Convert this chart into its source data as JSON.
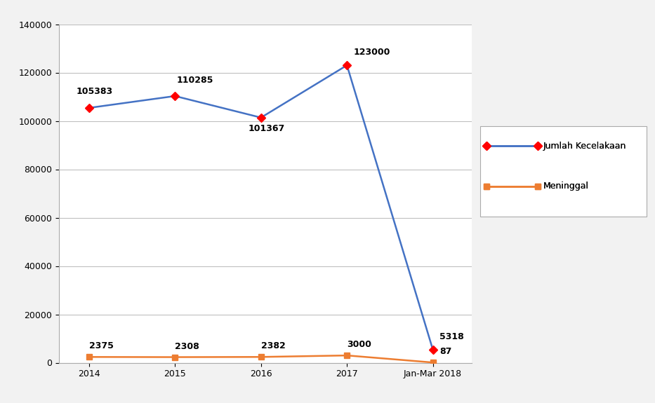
{
  "x_labels": [
    "2014",
    "2015",
    "2016",
    "2017",
    "Jan-Mar 2018"
  ],
  "x_positions": [
    0,
    1,
    2,
    3,
    4
  ],
  "jumlah_kecelakaan": [
    105383,
    110285,
    101367,
    123000,
    5318
  ],
  "meninggal": [
    2375,
    2308,
    2382,
    3000,
    87
  ],
  "jumlah_kecelakaan_labels": [
    "105383",
    "110285",
    "101367",
    "123000",
    "5318"
  ],
  "meninggal_labels": [
    "2375",
    "2308",
    "2382",
    "3000",
    "87"
  ],
  "line1_color": "#4472C4",
  "line2_color": "#ED7D31",
  "marker1_color": "#FF0000",
  "marker2_color": "#ED7D31",
  "legend_label1": "Jumlah Kecelakaan",
  "legend_label2": "Meninggal",
  "ylim": [
    0,
    140000
  ],
  "yticks": [
    0,
    20000,
    40000,
    60000,
    80000,
    100000,
    120000,
    140000
  ],
  "bg_color": "#f2f2f2",
  "plot_bg_color": "#ffffff",
  "grid_color": "#c0c0c0",
  "ann_fontsize": 9,
  "tick_fontsize": 9
}
